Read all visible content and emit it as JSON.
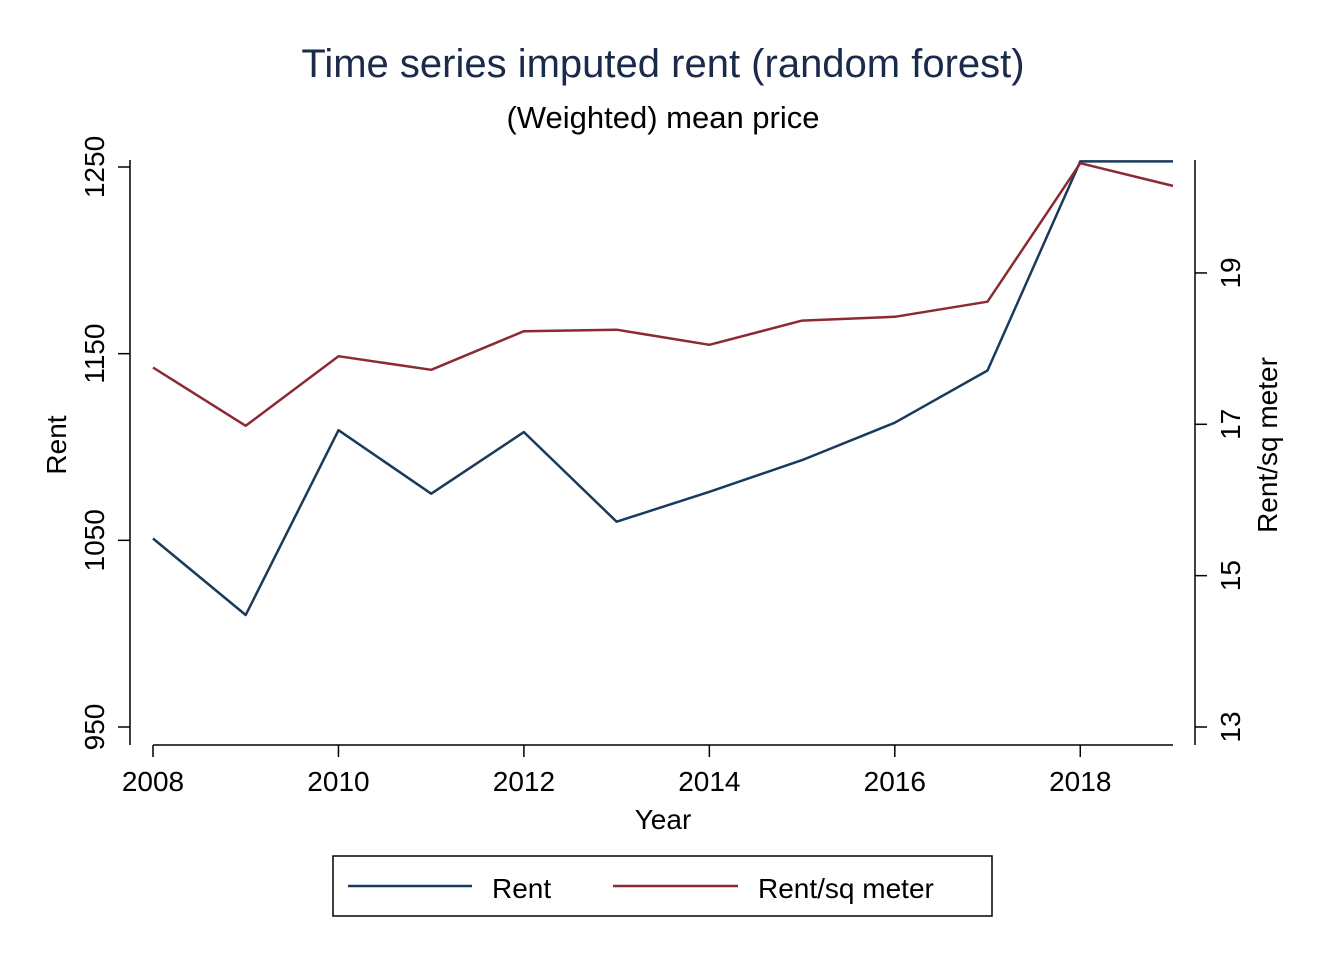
{
  "chart_data": {
    "type": "line",
    "title": "Time series imputed rent (random forest)",
    "subtitle": "(Weighted) mean price",
    "xlabel": "Year",
    "ylabel": "Rent",
    "y2label": "Rent/sq meter",
    "x": [
      2008,
      2009,
      2010,
      2011,
      2012,
      2013,
      2014,
      2015,
      2016,
      2017,
      2018,
      2019
    ],
    "xticks": [
      "2008",
      "2010",
      "2012",
      "2014",
      "2016",
      "2018"
    ],
    "yticks": [
      "950",
      "1050",
      "1150",
      "1250"
    ],
    "y2ticks": [
      "13",
      "15",
      "17",
      "19"
    ],
    "ylim": [
      950,
      1250
    ],
    "y2lim": [
      13,
      20.4
    ],
    "grid": false,
    "legend_position": "bottom",
    "series": [
      {
        "name": "Rent",
        "axis": "left",
        "color": "#1a3a5c",
        "values": [
          1051,
          1010,
          1109,
          1075,
          1108,
          1060,
          1076,
          1093,
          1113,
          1141,
          1253,
          1253
        ]
      },
      {
        "name": "Rent/sq meter",
        "axis": "right",
        "color": "#8b2a32",
        "values": [
          17.75,
          16.98,
          17.9,
          17.72,
          18.23,
          18.25,
          18.05,
          18.37,
          18.42,
          18.62,
          20.45,
          20.15
        ]
      }
    ],
    "title_color": "#1a2a4a"
  }
}
